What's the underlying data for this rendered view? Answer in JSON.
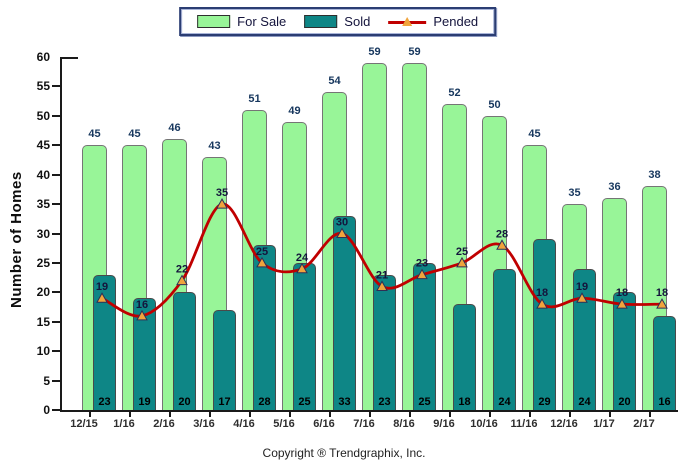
{
  "legend": {
    "for_sale_label": "For Sale",
    "sold_label": "Sold",
    "pended_label": "Pended"
  },
  "y_axis_title": "Number of Homes",
  "footer_text": "Copyright ® Trendgraphix, Inc.",
  "colors": {
    "for_sale_fill": "#98F598",
    "for_sale_border": "#757575",
    "sold_fill": "#0E8686",
    "sold_border": "#4A4A4A",
    "pended_line": "#C00000",
    "marker_fill": "#F0A43C",
    "marker_border": "#2F2F55",
    "top_label": "#17375E",
    "sold_label": "#000000",
    "pended_label": "#14143C"
  },
  "chart_data": {
    "type": "bar",
    "subtype": "grouped-overlap-bars-with-line",
    "categories": [
      "12/15",
      "1/16",
      "2/16",
      "3/16",
      "4/16",
      "5/16",
      "6/16",
      "7/16",
      "8/16",
      "9/16",
      "10/16",
      "11/16",
      "12/16",
      "1/17",
      "2/17"
    ],
    "series": [
      {
        "name": "For Sale",
        "type": "bar",
        "values": [
          45,
          45,
          46,
          43,
          51,
          49,
          54,
          59,
          59,
          52,
          50,
          45,
          35,
          36,
          38
        ]
      },
      {
        "name": "Sold",
        "type": "bar",
        "values": [
          23,
          19,
          20,
          17,
          28,
          25,
          33,
          23,
          25,
          18,
          24,
          29,
          24,
          20,
          16
        ]
      },
      {
        "name": "Pended",
        "type": "line",
        "values": [
          19,
          16,
          22,
          35,
          25,
          24,
          30,
          21,
          23,
          25,
          28,
          18,
          19,
          18,
          18
        ]
      }
    ],
    "title": "",
    "xlabel": "",
    "ylabel": "Number of Homes",
    "ylim": [
      0,
      60
    ],
    "yticks": [
      0,
      5,
      10,
      15,
      20,
      25,
      30,
      35,
      40,
      45,
      50,
      55,
      60
    ],
    "grid": false,
    "legend_position": "top"
  }
}
